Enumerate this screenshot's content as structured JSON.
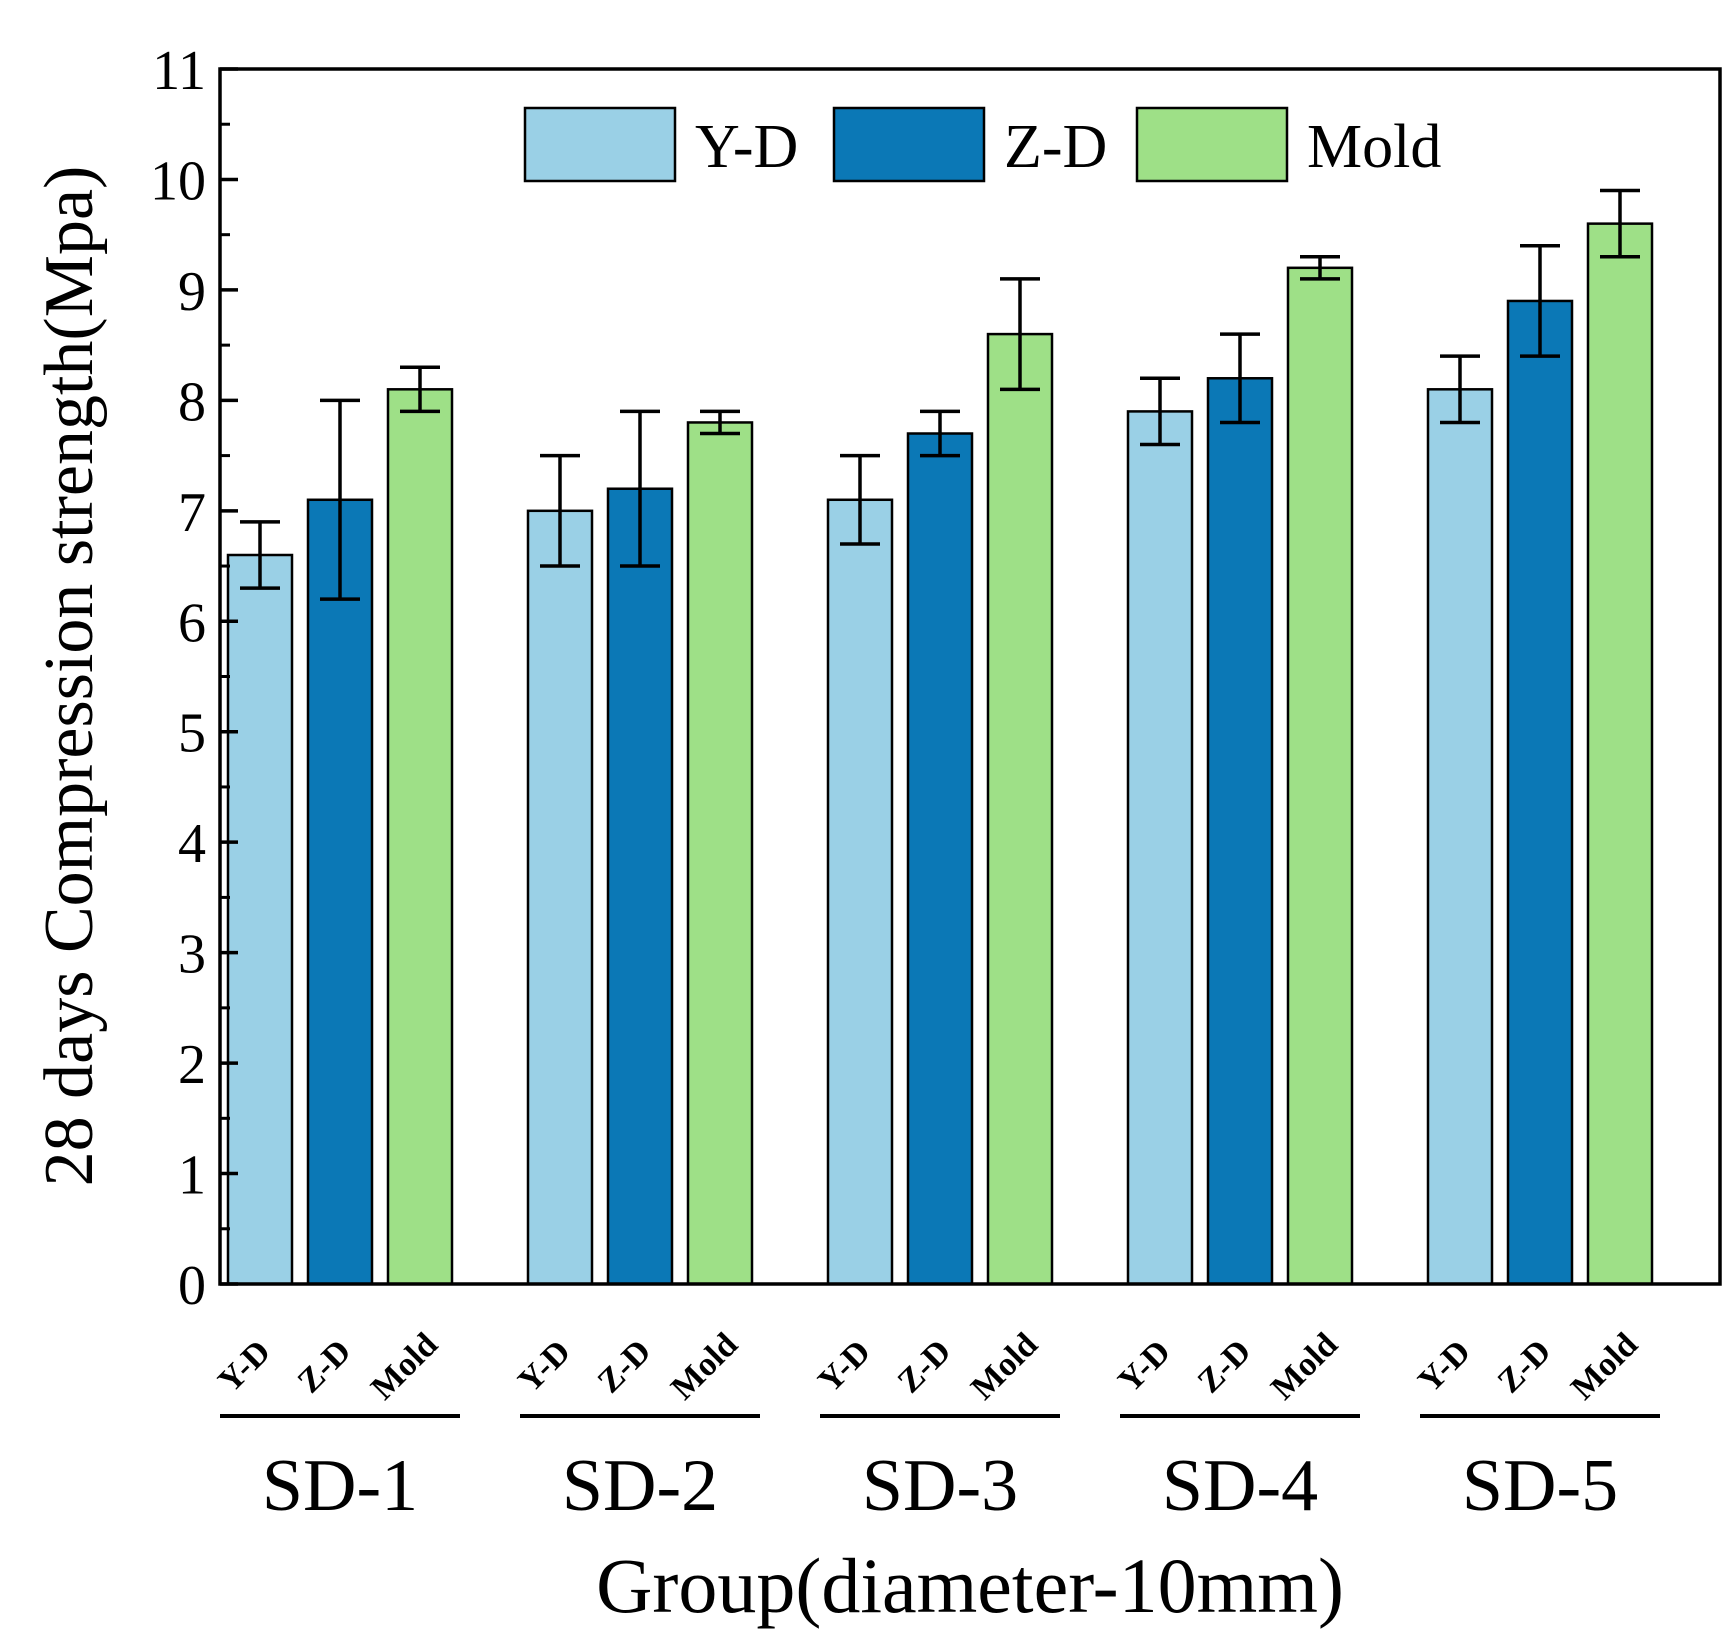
{
  "chart_data": {
    "type": "bar",
    "title": "",
    "xlabel": "Group(diameter-10mm)",
    "ylabel": "28 days Compression strength(Mpa)",
    "ylim": [
      0,
      11
    ],
    "yticks": [
      "0",
      "1",
      "2",
      "3",
      "4",
      "5",
      "6",
      "7",
      "8",
      "9",
      "10",
      "11"
    ],
    "grid": false,
    "legend_position": "top",
    "groups": [
      "SD-1",
      "SD-2",
      "SD-3",
      "SD-4",
      "SD-5"
    ],
    "sub_labels": [
      "Y-D",
      "Z-D",
      "Mold"
    ],
    "series": [
      {
        "name": "Y-D",
        "color": "#9ad0e6",
        "values": [
          6.6,
          7.0,
          7.1,
          7.9,
          8.1
        ],
        "errors": [
          0.3,
          0.5,
          0.4,
          0.3,
          0.3
        ]
      },
      {
        "name": "Z-D",
        "color": "#0b78b6",
        "values": [
          7.1,
          7.2,
          7.7,
          8.2,
          8.9
        ],
        "errors": [
          0.9,
          0.7,
          0.2,
          0.4,
          0.5
        ]
      },
      {
        "name": "Mold",
        "color": "#9ee087",
        "values": [
          8.1,
          7.8,
          8.6,
          9.2,
          9.6
        ],
        "errors": [
          0.2,
          0.1,
          0.5,
          0.1,
          0.3
        ]
      }
    ]
  }
}
